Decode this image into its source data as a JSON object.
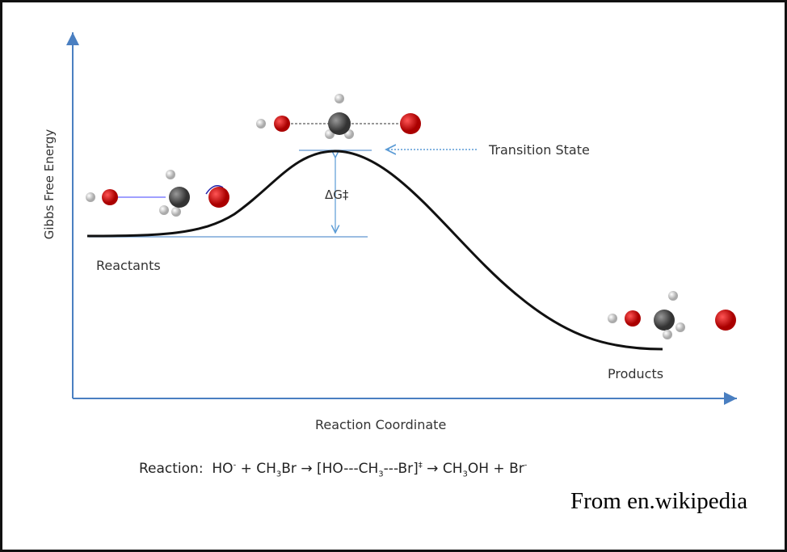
{
  "diagram": {
    "y_axis_label": "Gibbs Free Energy",
    "x_axis_label": "Reaction Coordinate",
    "transition_state_label": "Transition State",
    "delta_g_label": "ΔG‡",
    "reactants_label": "Reactants",
    "products_label": "Products",
    "reaction": {
      "label": "Reaction:",
      "parts": [
        {
          "text": "HO"
        },
        {
          "sup": "-"
        },
        {
          "text": " + CH"
        },
        {
          "sub": "3"
        },
        {
          "text": "Br → [HO---CH"
        },
        {
          "sub": "3"
        },
        {
          "text": "---Br]"
        },
        {
          "sup": "‡"
        },
        {
          "text": " → CH"
        },
        {
          "sub": "3"
        },
        {
          "text": "OH + Br"
        },
        {
          "sup": "-"
        }
      ]
    },
    "source": "From en.wikipedia"
  }
}
